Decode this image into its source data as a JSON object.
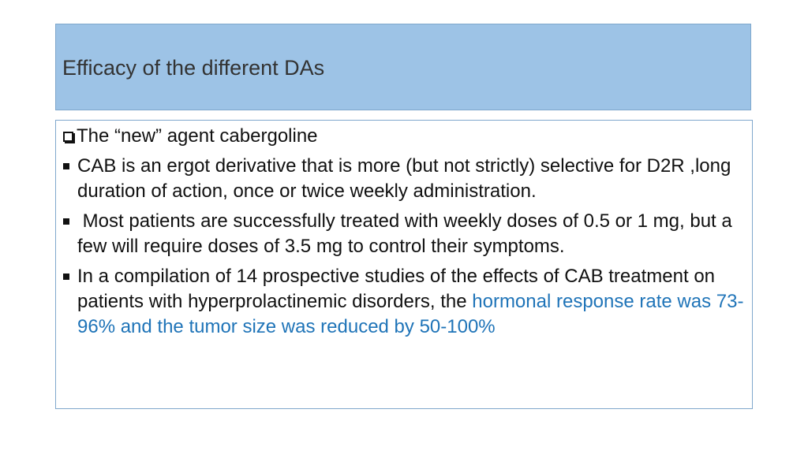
{
  "slide": {
    "title": "Efficacy of the different DAs",
    "heading": "The “new” agent cabergoline",
    "bullets": [
      {
        "text": "CAB is an ergot derivative that is more (but not strictly) selective for D2R ,long duration of action, once or twice weekly administration."
      },
      {
        "text": " Most patients are successfully treated with weekly doses of 0.5 or 1 mg, but a few will require doses of 3.5 mg to control their symptoms."
      },
      {
        "text": "In a compilation of 14 prospective studies of the effects of CAB treatment on patients with hyperprolactinemic disorders, the ",
        "highlight": "hormonal response rate was 73-96% and the tumor size was reduced by 50-100%"
      }
    ]
  },
  "colors": {
    "title_bg": "#9dc3e6",
    "highlight": "#1f74b8"
  }
}
